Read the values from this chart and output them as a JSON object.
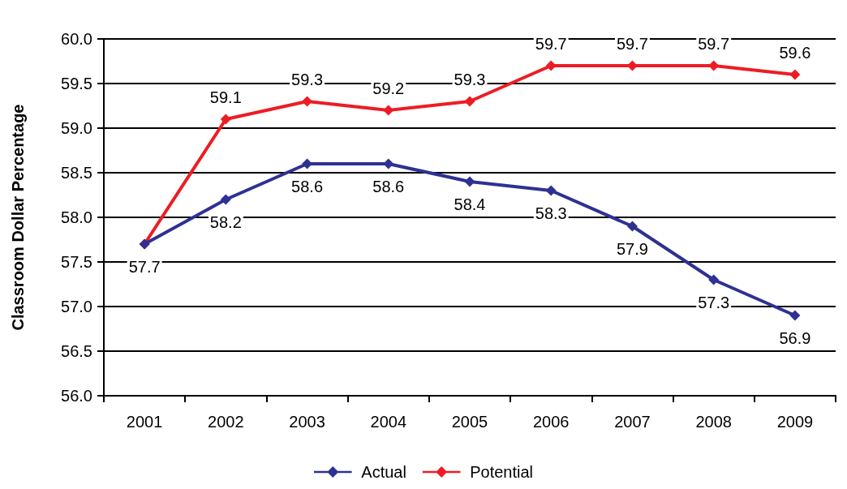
{
  "chart_data": {
    "type": "line",
    "ylabel": "Classroom Dollar Percentage",
    "categories": [
      "2001",
      "2002",
      "2003",
      "2004",
      "2005",
      "2006",
      "2007",
      "2008",
      "2009"
    ],
    "series": [
      {
        "name": "Actual",
        "color": "#2e3192",
        "values": [
          57.7,
          58.2,
          58.6,
          58.6,
          58.4,
          58.3,
          57.9,
          57.3,
          56.9
        ],
        "value_labels": [
          "57.7",
          "58.2",
          "58.6",
          "58.6",
          "58.4",
          "58.3",
          "57.9",
          "57.3",
          "56.9"
        ]
      },
      {
        "name": "Potential",
        "color": "#ed1c24",
        "values": [
          57.7,
          59.1,
          59.3,
          59.2,
          59.3,
          59.7,
          59.7,
          59.7,
          59.6
        ],
        "value_labels": [
          null,
          "59.1",
          "59.3",
          "59.2",
          "59.3",
          "59.7",
          "59.7",
          "59.7",
          "59.6"
        ]
      }
    ],
    "ylim": [
      56,
      60
    ],
    "yticks": [
      {
        "value": 56,
        "label": "56.0"
      },
      {
        "value": 56.5,
        "label": "56.5"
      },
      {
        "value": 57,
        "label": "57.0"
      },
      {
        "value": 57.5,
        "label": "57.5"
      },
      {
        "value": 58,
        "label": "58.0"
      },
      {
        "value": 58.5,
        "label": "58.5"
      },
      {
        "value": 59,
        "label": "59.0"
      },
      {
        "value": 59.5,
        "label": "59.5"
      },
      {
        "value": 60,
        "label": "60.0"
      }
    ],
    "grid": "y",
    "legend": "bottom",
    "marker": "diamond",
    "line_style": "solid"
  }
}
